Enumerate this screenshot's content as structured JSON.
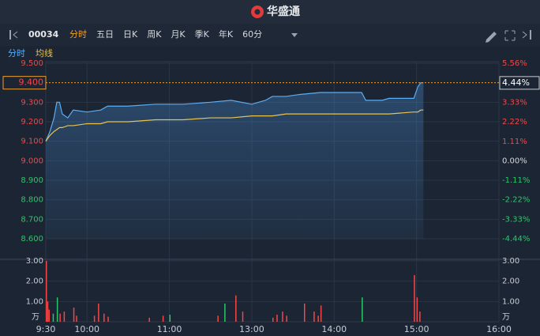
{
  "header": {
    "logo": "华盛通"
  },
  "toolbar": {
    "symbol": "00034",
    "tabs": [
      "分时",
      "五日",
      "日K",
      "周K",
      "月K",
      "季K",
      "年K",
      "60分"
    ]
  },
  "chart_data": {
    "type": "line",
    "x": [
      0,
      3,
      6,
      8,
      10,
      12,
      16,
      20,
      30,
      40,
      45,
      60,
      80,
      100,
      120,
      135,
      150,
      160,
      165,
      175,
      185,
      200,
      230,
      233,
      245,
      250,
      268,
      271,
      273,
      275
    ],
    "series": [
      {
        "name": "分时",
        "color": "#5aaef5",
        "values": [
          9.1,
          9.15,
          9.22,
          9.3,
          9.3,
          9.24,
          9.22,
          9.26,
          9.25,
          9.26,
          9.28,
          9.28,
          9.29,
          9.29,
          9.3,
          9.31,
          9.29,
          9.31,
          9.33,
          9.33,
          9.34,
          9.35,
          9.35,
          9.31,
          9.31,
          9.32,
          9.32,
          9.38,
          9.4,
          9.4
        ]
      },
      {
        "name": "均线",
        "color": "#e8c350",
        "values": [
          9.1,
          9.13,
          9.15,
          9.16,
          9.17,
          9.17,
          9.18,
          9.18,
          9.19,
          9.19,
          9.2,
          9.2,
          9.21,
          9.21,
          9.22,
          9.22,
          9.23,
          9.23,
          9.23,
          9.24,
          9.24,
          9.24,
          9.24,
          9.24,
          9.24,
          9.24,
          9.25,
          9.25,
          9.26,
          9.26
        ]
      }
    ],
    "xlim": [
      0,
      330
    ],
    "xticks": [
      {
        "value": 0,
        "label": "9:30"
      },
      {
        "value": 30,
        "label": "10:00"
      },
      {
        "value": 90,
        "label": "11:00"
      },
      {
        "value": 150,
        "label": "13:00"
      },
      {
        "value": 210,
        "label": "14:00"
      },
      {
        "value": 270,
        "label": "15:00"
      },
      {
        "value": 330,
        "label": "16:00"
      }
    ],
    "ylim": [
      8.6,
      9.5
    ],
    "yticks": [
      {
        "value": 9.5,
        "label": "9.500"
      },
      {
        "value": 9.3,
        "label": "9.300"
      },
      {
        "value": 9.2,
        "label": "9.200"
      },
      {
        "value": 9.1,
        "label": "9.100"
      },
      {
        "value": 9.0,
        "label": "9.000"
      },
      {
        "value": 8.9,
        "label": "8.900"
      },
      {
        "value": 8.8,
        "label": "8.800"
      },
      {
        "value": 8.7,
        "label": "8.700"
      },
      {
        "value": 8.6,
        "label": "8.600"
      }
    ],
    "y2lim": [
      -4.44,
      5.56
    ],
    "y2ticks": [
      {
        "value": 5.56,
        "label": "5.56%"
      },
      {
        "value": 3.33,
        "label": "3.33%"
      },
      {
        "value": 2.22,
        "label": "2.22%"
      },
      {
        "value": 1.11,
        "label": "1.11%"
      },
      {
        "value": 0,
        "label": "0.00%"
      },
      {
        "value": -1.11,
        "label": "-1.11%"
      },
      {
        "value": -2.22,
        "label": "-2.22%"
      },
      {
        "value": -3.33,
        "label": "-3.33%"
      },
      {
        "value": -4.44,
        "label": "-4.44%"
      }
    ],
    "current_price": {
      "value": 9.4,
      "label": "9.400"
    },
    "current_change": {
      "value": 4.44,
      "label": "4.44%"
    },
    "volume": {
      "x": [
        0,
        1,
        2,
        5,
        8,
        10,
        13,
        20,
        22,
        35,
        38,
        42,
        45,
        75,
        85,
        90,
        125,
        130,
        138,
        143,
        165,
        168,
        172,
        175,
        188,
        195,
        198,
        200,
        230,
        268,
        270,
        272
      ],
      "values": [
        3.0,
        1.0,
        0.6,
        0.4,
        1.2,
        0.4,
        0.5,
        0.7,
        0.3,
        0.3,
        0.9,
        0.4,
        0.25,
        0.2,
        0.3,
        0.35,
        0.3,
        0.9,
        1.3,
        0.5,
        0.2,
        0.35,
        0.5,
        0.3,
        0.9,
        0.5,
        0.3,
        0.8,
        1.2,
        2.3,
        1.2,
        0.5
      ],
      "colors": [
        "#f04848",
        "#f04848",
        "#f04848",
        "#2ec56a",
        "#2ec56a",
        "#f04848",
        "#f04848",
        "#f04848",
        "#f04848",
        "#f04848",
        "#f04848",
        "#f04848",
        "#f04848",
        "#f04848",
        "#f04848",
        "#2ec56a",
        "#f04848",
        "#2ec56a",
        "#f04848",
        "#f04848",
        "#f04848",
        "#f04848",
        "#f04848",
        "#f04848",
        "#f04848",
        "#f04848",
        "#f04848",
        "#f04848",
        "#2ec56a",
        "#f04848",
        "#f04848",
        "#f04848"
      ],
      "ylim": [
        0,
        3
      ],
      "yticks": [
        {
          "value": 3,
          "label": "3.00"
        },
        {
          "value": 2,
          "label": "2.00"
        },
        {
          "value": 1,
          "label": "1.00"
        }
      ],
      "unit": "万"
    }
  }
}
